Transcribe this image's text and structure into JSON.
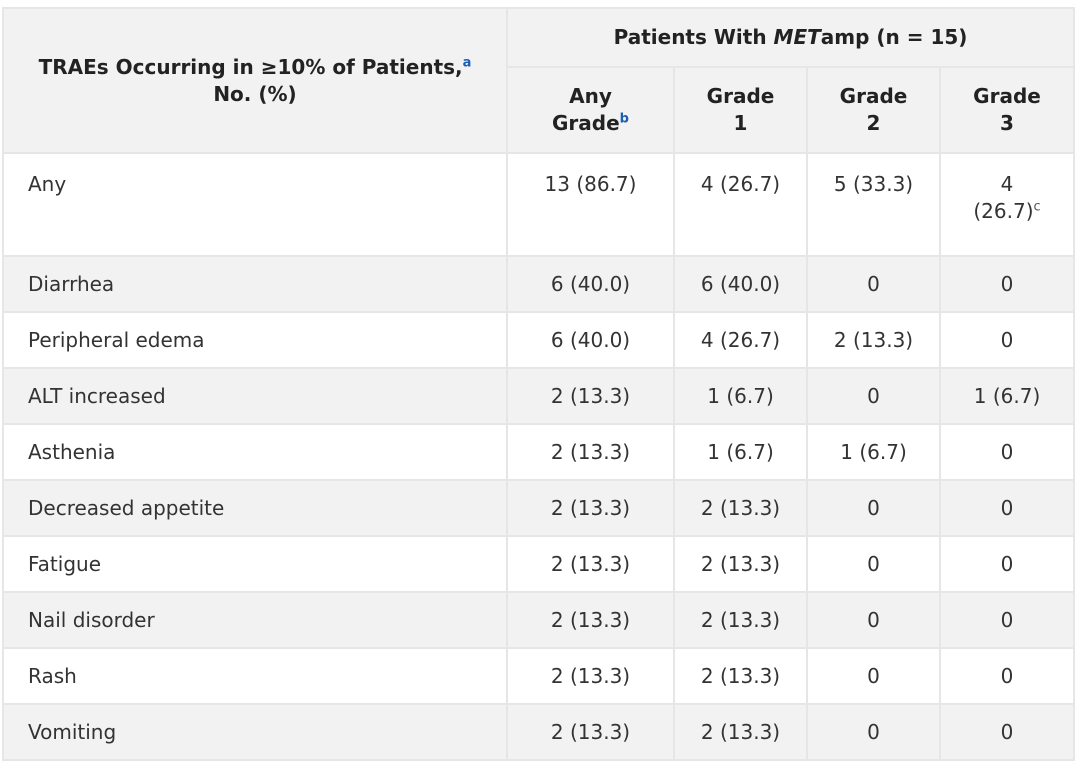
{
  "table": {
    "header": {
      "row_label_title": "TRAEs Occurring in ≥10% of Patients,",
      "row_label_footnote": "a",
      "row_label_sub": "No. (%)",
      "group_prefix": "Patients With ",
      "group_italic": "MET",
      "group_suffix": "amp (n = 15)",
      "columns": [
        {
          "line1": "Any",
          "line2": "Grade",
          "footnote": "b"
        },
        {
          "line1": "Grade",
          "line2": "1"
        },
        {
          "line1": "Grade",
          "line2": "2"
        },
        {
          "line1": "Grade",
          "line2": "3"
        }
      ]
    },
    "any_row": {
      "label": "Any",
      "cells": [
        "13 (86.7)",
        "4 (26.7)",
        "5 (33.3)"
      ],
      "grade3_line1": "4",
      "grade3_line2": "(26.7)",
      "grade3_footnote": "c"
    },
    "rows": [
      {
        "label": "Diarrhea",
        "cells": [
          "6 (40.0)",
          "6 (40.0)",
          "0",
          "0"
        ]
      },
      {
        "label": "Peripheral edema",
        "cells": [
          "6 (40.0)",
          "4 (26.7)",
          "2 (13.3)",
          "0"
        ]
      },
      {
        "label": "ALT increased",
        "cells": [
          "2 (13.3)",
          "1 (6.7)",
          "0",
          "1 (6.7)"
        ]
      },
      {
        "label": "Asthenia",
        "cells": [
          "2 (13.3)",
          "1 (6.7)",
          "1 (6.7)",
          "0"
        ]
      },
      {
        "label": "Decreased appetite",
        "cells": [
          "2 (13.3)",
          "2 (13.3)",
          "0",
          "0"
        ]
      },
      {
        "label": "Fatigue",
        "cells": [
          "2 (13.3)",
          "2 (13.3)",
          "0",
          "0"
        ]
      },
      {
        "label": "Nail disorder",
        "cells": [
          "2 (13.3)",
          "2 (13.3)",
          "0",
          "0"
        ]
      },
      {
        "label": "Rash",
        "cells": [
          "2 (13.3)",
          "2 (13.3)",
          "0",
          "0"
        ]
      },
      {
        "label": "Vomiting",
        "cells": [
          "2 (13.3)",
          "2 (13.3)",
          "0",
          "0"
        ]
      }
    ]
  }
}
